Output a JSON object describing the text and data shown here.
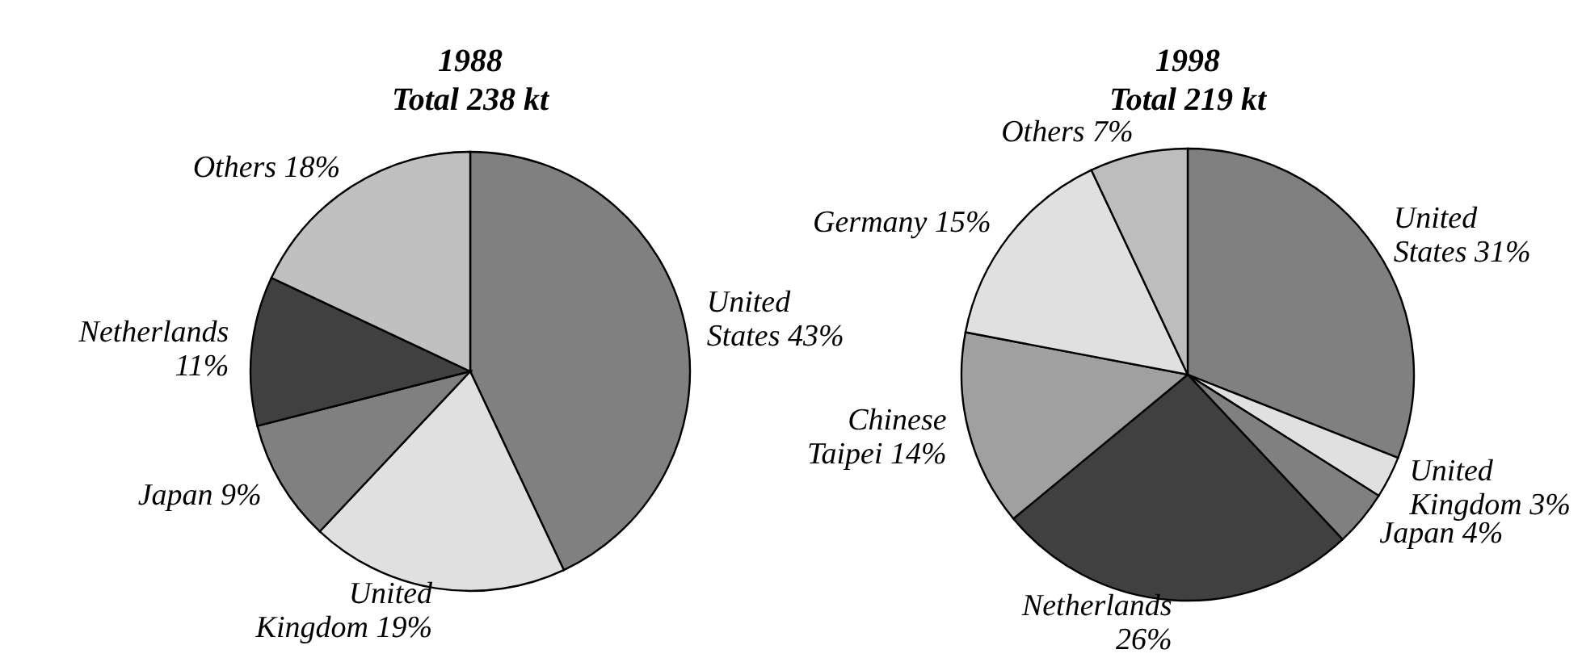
{
  "chart_data": [
    {
      "type": "pie",
      "title": "1988",
      "subtitle": "Total 238 kt",
      "categories": [
        "United States",
        "United Kingdom",
        "Japan",
        "Netherlands",
        "Others"
      ],
      "values": [
        43,
        19,
        9,
        11,
        18
      ],
      "value_labels": [
        "43%",
        "19%",
        "9%",
        "11%",
        "18%"
      ],
      "colors": [
        "#808080",
        "#e0e0e0",
        "#808080",
        "#404040",
        "#c0c0c0"
      ]
    },
    {
      "type": "pie",
      "title": "1998",
      "subtitle": "Total 219 kt",
      "categories": [
        "United States",
        "United Kingdom",
        "Japan",
        "Netherlands",
        "Chinese Taipei",
        "Germany",
        "Others"
      ],
      "values": [
        31,
        3,
        4,
        26,
        14,
        15,
        7
      ],
      "value_labels": [
        "31%",
        "3%",
        "4%",
        "26%",
        "14%",
        "15%",
        "7%"
      ],
      "colors": [
        "#808080",
        "#e0e0e0",
        "#808080",
        "#404040",
        "#a0a0a0",
        "#e0e0e0",
        "#bdbdbd"
      ]
    }
  ]
}
